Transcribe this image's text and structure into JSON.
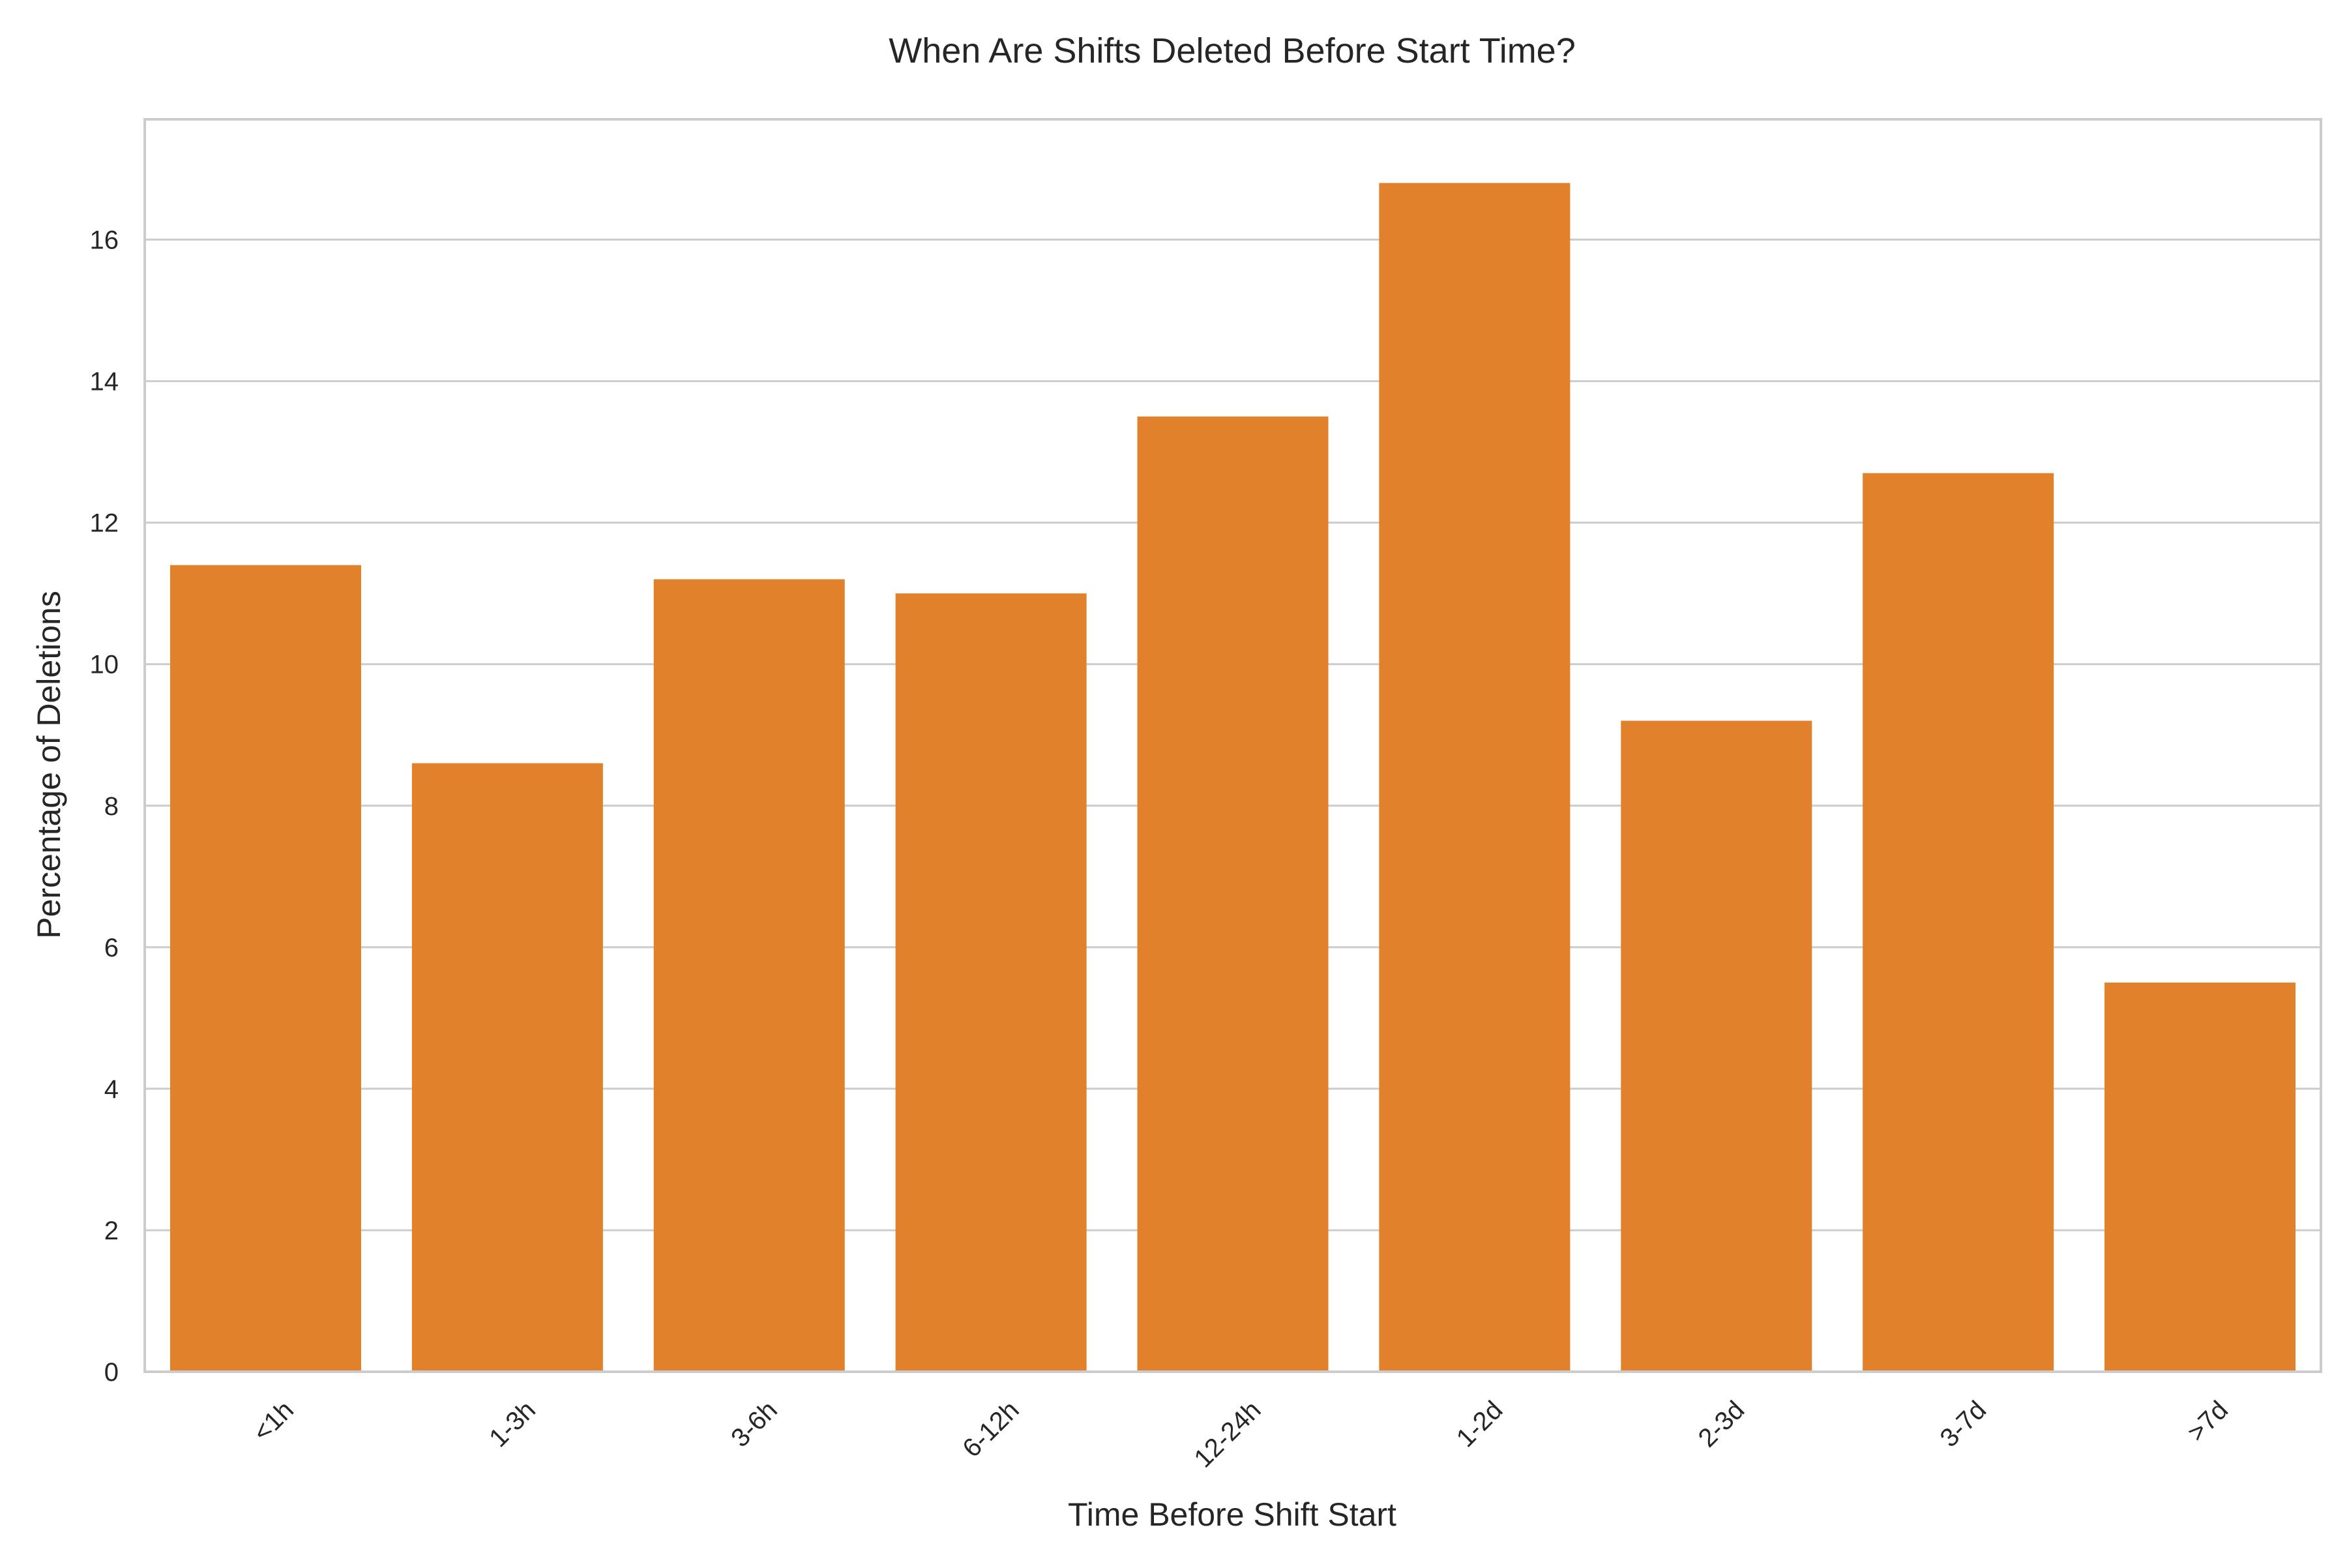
{
  "chart_data": {
    "type": "bar",
    "title": "When Are Shifts Deleted Before Start Time?",
    "xlabel": "Time Before Shift Start",
    "ylabel": "Percentage of Deletions",
    "categories": [
      "<1h",
      "1-3h",
      "3-6h",
      "6-12h",
      "12-24h",
      "1-2d",
      "2-3d",
      "3-7d",
      ">7d"
    ],
    "values": [
      11.4,
      8.6,
      11.2,
      11.0,
      13.5,
      16.8,
      9.2,
      12.7,
      5.5
    ],
    "ylim": [
      0,
      17.7
    ],
    "yticks": [
      0,
      2,
      4,
      6,
      8,
      10,
      12,
      14,
      16
    ],
    "grid": "y",
    "bar_color": "#e1812c",
    "legend": "none"
  }
}
